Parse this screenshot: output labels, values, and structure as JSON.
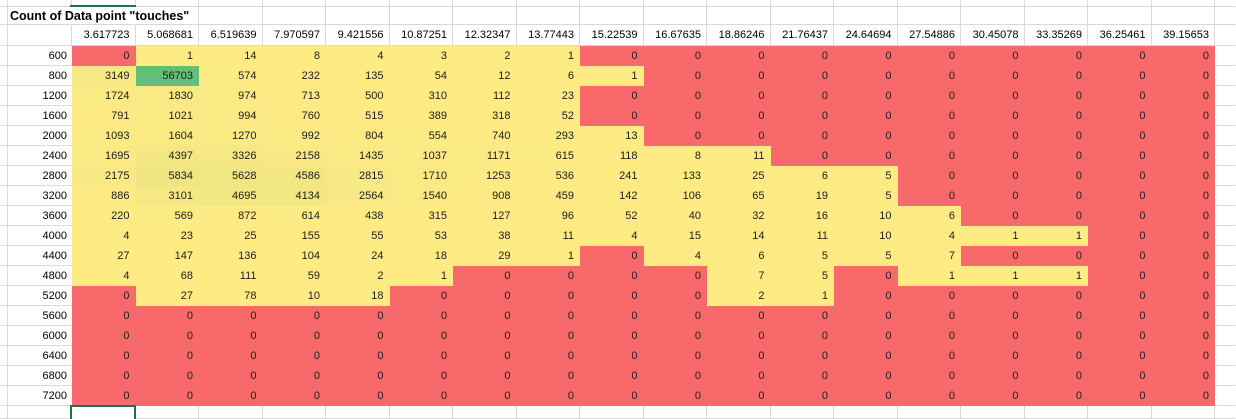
{
  "title": "Count of Data point \"touches\"",
  "columns": [
    "3.617723",
    "5.068681",
    "6.519639",
    "7.970597",
    "9.421556",
    "10.87251",
    "12.32347",
    "13.77443",
    "15.22539",
    "16.67635",
    "18.86246",
    "21.76437",
    "24.64694",
    "27.54886",
    "30.45078",
    "33.35269",
    "36.25461",
    "39.15653"
  ],
  "rows": [
    {
      "label": "600",
      "values": [
        0,
        1,
        14,
        8,
        4,
        3,
        2,
        1,
        0,
        0,
        0,
        0,
        0,
        0,
        0,
        0,
        0,
        0
      ]
    },
    {
      "label": "800",
      "values": [
        3149,
        56703,
        574,
        232,
        135,
        54,
        12,
        6,
        1,
        0,
        0,
        0,
        0,
        0,
        0,
        0,
        0,
        0
      ]
    },
    {
      "label": "1200",
      "values": [
        1724,
        1830,
        974,
        713,
        500,
        310,
        112,
        23,
        0,
        0,
        0,
        0,
        0,
        0,
        0,
        0,
        0,
        0
      ]
    },
    {
      "label": "1600",
      "values": [
        791,
        1021,
        994,
        760,
        515,
        389,
        318,
        52,
        0,
        0,
        0,
        0,
        0,
        0,
        0,
        0,
        0,
        0
      ]
    },
    {
      "label": "2000",
      "values": [
        1093,
        1604,
        1270,
        992,
        804,
        554,
        740,
        293,
        13,
        0,
        0,
        0,
        0,
        0,
        0,
        0,
        0,
        0
      ]
    },
    {
      "label": "2400",
      "values": [
        1695,
        4397,
        3326,
        2158,
        1435,
        1037,
        1171,
        615,
        118,
        8,
        11,
        0,
        0,
        0,
        0,
        0,
        0,
        0
      ]
    },
    {
      "label": "2800",
      "values": [
        2175,
        5834,
        5628,
        4586,
        2815,
        1710,
        1253,
        536,
        241,
        133,
        25,
        6,
        5,
        0,
        0,
        0,
        0,
        0
      ]
    },
    {
      "label": "3200",
      "values": [
        886,
        3101,
        4695,
        4134,
        2564,
        1540,
        908,
        459,
        142,
        106,
        65,
        19,
        5,
        0,
        0,
        0,
        0,
        0
      ]
    },
    {
      "label": "3600",
      "values": [
        220,
        569,
        872,
        614,
        438,
        315,
        127,
        96,
        52,
        40,
        32,
        16,
        10,
        6,
        0,
        0,
        0,
        0
      ]
    },
    {
      "label": "4000",
      "values": [
        4,
        23,
        25,
        155,
        55,
        53,
        38,
        11,
        4,
        15,
        14,
        11,
        10,
        4,
        1,
        1,
        0,
        0
      ]
    },
    {
      "label": "4400",
      "values": [
        27,
        147,
        136,
        104,
        24,
        18,
        29,
        1,
        0,
        4,
        6,
        5,
        5,
        7,
        0,
        0,
        0,
        0
      ]
    },
    {
      "label": "4800",
      "values": [
        4,
        68,
        111,
        59,
        2,
        1,
        0,
        0,
        0,
        0,
        7,
        5,
        0,
        1,
        1,
        1,
        0,
        0
      ]
    },
    {
      "label": "5200",
      "values": [
        0,
        27,
        78,
        10,
        18,
        0,
        0,
        0,
        0,
        0,
        2,
        1,
        0,
        0,
        0,
        0,
        0,
        0
      ]
    },
    {
      "label": "5600",
      "values": [
        0,
        0,
        0,
        0,
        0,
        0,
        0,
        0,
        0,
        0,
        0,
        0,
        0,
        0,
        0,
        0,
        0,
        0
      ]
    },
    {
      "label": "6000",
      "values": [
        0,
        0,
        0,
        0,
        0,
        0,
        0,
        0,
        0,
        0,
        0,
        0,
        0,
        0,
        0,
        0,
        0,
        0
      ]
    },
    {
      "label": "6400",
      "values": [
        0,
        0,
        0,
        0,
        0,
        0,
        0,
        0,
        0,
        0,
        0,
        0,
        0,
        0,
        0,
        0,
        0,
        0
      ]
    },
    {
      "label": "6800",
      "values": [
        0,
        0,
        0,
        0,
        0,
        0,
        0,
        0,
        0,
        0,
        0,
        0,
        0,
        0,
        0,
        0,
        0,
        0
      ]
    },
    {
      "label": "7200",
      "values": [
        0,
        0,
        0,
        0,
        0,
        0,
        0,
        0,
        0,
        0,
        0,
        0,
        0,
        0,
        0,
        0,
        0,
        0
      ]
    }
  ],
  "color_scale": {
    "rule": "value 0 = red; values > 0 interpolate yellow to green up to max",
    "min": 0,
    "max": 56703,
    "zero_fill": "#F8696B",
    "low_fill": "#FFEB84",
    "high_fill": "#63BE7A"
  },
  "colors": {
    "gridline": "#D8D8D8",
    "selection_border": "#1F7244",
    "text": "#1D1D1D",
    "background": "#FFFFFF"
  },
  "selection": {
    "description": "empty cell selected in first data column below row 7200; matching green border fragment visible at top of view"
  }
}
